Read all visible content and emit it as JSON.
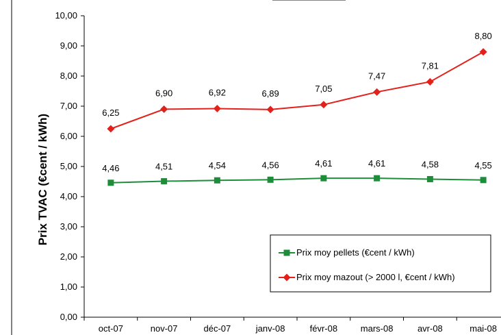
{
  "chart_data": {
    "type": "line",
    "categories": [
      "oct-07",
      "nov-07",
      "déc-07",
      "janv-08",
      "févr-08",
      "mars-08",
      "avr-08",
      "mai-08"
    ],
    "series": [
      {
        "name": "Prix moy pellets (€cent / kWh)",
        "values": [
          4.46,
          4.51,
          4.54,
          4.56,
          4.61,
          4.61,
          4.58,
          4.55
        ],
        "labels": [
          "4,46",
          "4,51",
          "4,54",
          "4,56",
          "4,61",
          "4,61",
          "4,58",
          "4,55"
        ],
        "color": "#1e8c3a",
        "marker": "square"
      },
      {
        "name": "Prix moy mazout (> 2000 l, €cent / kWh)",
        "values": [
          6.25,
          6.9,
          6.92,
          6.89,
          7.05,
          7.47,
          7.81,
          8.8
        ],
        "labels": [
          "6,25",
          "6,90",
          "6,92",
          "6,89",
          "7,05",
          "7,47",
          "7,81",
          "8,80"
        ],
        "color": "#e3211c",
        "marker": "diamond"
      }
    ],
    "yticks": [
      "0,00",
      "1,00",
      "2,00",
      "3,00",
      "4,00",
      "5,00",
      "6,00",
      "7,00",
      "8,00",
      "9,00",
      "10,00"
    ],
    "ylim": [
      0,
      10
    ],
    "ylabel": "Prix TVAC (€cent / kWh)",
    "xlabel": "",
    "grid": false,
    "legend_position": "bottom-right"
  }
}
